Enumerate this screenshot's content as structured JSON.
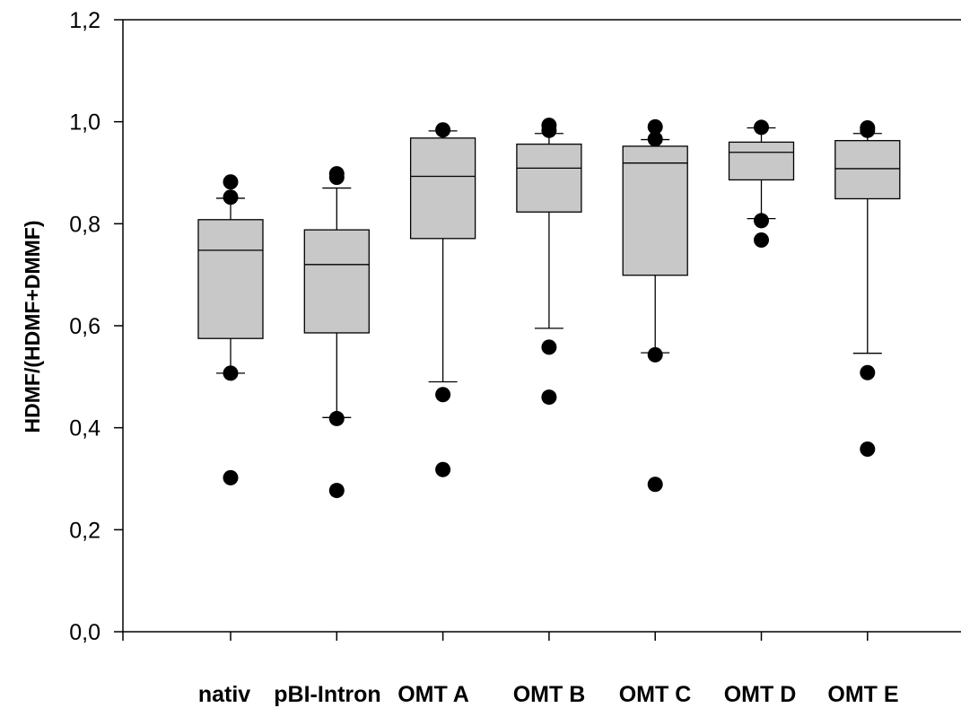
{
  "chart_data": {
    "type": "box",
    "title": "",
    "xlabel": "",
    "ylabel": "HDMF/(HDMF+DMMF)",
    "ylim": [
      0,
      1.2
    ],
    "yticks": [
      "0,0",
      "0,2",
      "0,4",
      "0,6",
      "0,8",
      "1,0",
      "1,2"
    ],
    "ytick_values": [
      0,
      0.2,
      0.4,
      0.6,
      0.8,
      1.0,
      1.2
    ],
    "grid": false,
    "box_color": "#c8c8c8",
    "categories": [
      "nativ",
      "pBI-Intron",
      "OMT A",
      "OMT B",
      "OMT C",
      "OMT D",
      "OMT E"
    ],
    "boxes": [
      {
        "category": "nativ",
        "whisker_low": 0.507,
        "q1": 0.575,
        "median": 0.748,
        "q3": 0.808,
        "whisker_high": 0.85,
        "outliers": [
          0.882,
          0.852,
          0.507,
          0.302
        ]
      },
      {
        "category": "pBI-Intron",
        "whisker_low": 0.42,
        "q1": 0.586,
        "median": 0.72,
        "q3": 0.788,
        "whisker_high": 0.87,
        "outliers": [
          0.898,
          0.891,
          0.418,
          0.277
        ]
      },
      {
        "category": "OMT A",
        "whisker_low": 0.49,
        "q1": 0.771,
        "median": 0.893,
        "q3": 0.968,
        "whisker_high": 0.982,
        "outliers": [
          0.984,
          0.465,
          0.318
        ]
      },
      {
        "category": "OMT B",
        "whisker_low": 0.595,
        "q1": 0.823,
        "median": 0.909,
        "q3": 0.956,
        "whisker_high": 0.977,
        "outliers": [
          0.993,
          0.983,
          0.558,
          0.46
        ]
      },
      {
        "category": "OMT C",
        "whisker_low": 0.547,
        "q1": 0.699,
        "median": 0.919,
        "q3": 0.952,
        "whisker_high": 0.965,
        "outliers": [
          0.99,
          0.966,
          0.543,
          0.289
        ]
      },
      {
        "category": "OMT D",
        "whisker_low": 0.81,
        "q1": 0.886,
        "median": 0.94,
        "q3": 0.96,
        "whisker_high": 0.988,
        "outliers": [
          0.989,
          0.806,
          0.768
        ]
      },
      {
        "category": "OMT E",
        "whisker_low": 0.546,
        "q1": 0.849,
        "median": 0.908,
        "q3": 0.963,
        "whisker_high": 0.977,
        "outliers": [
          0.988,
          0.983,
          0.508,
          0.358
        ]
      }
    ]
  }
}
